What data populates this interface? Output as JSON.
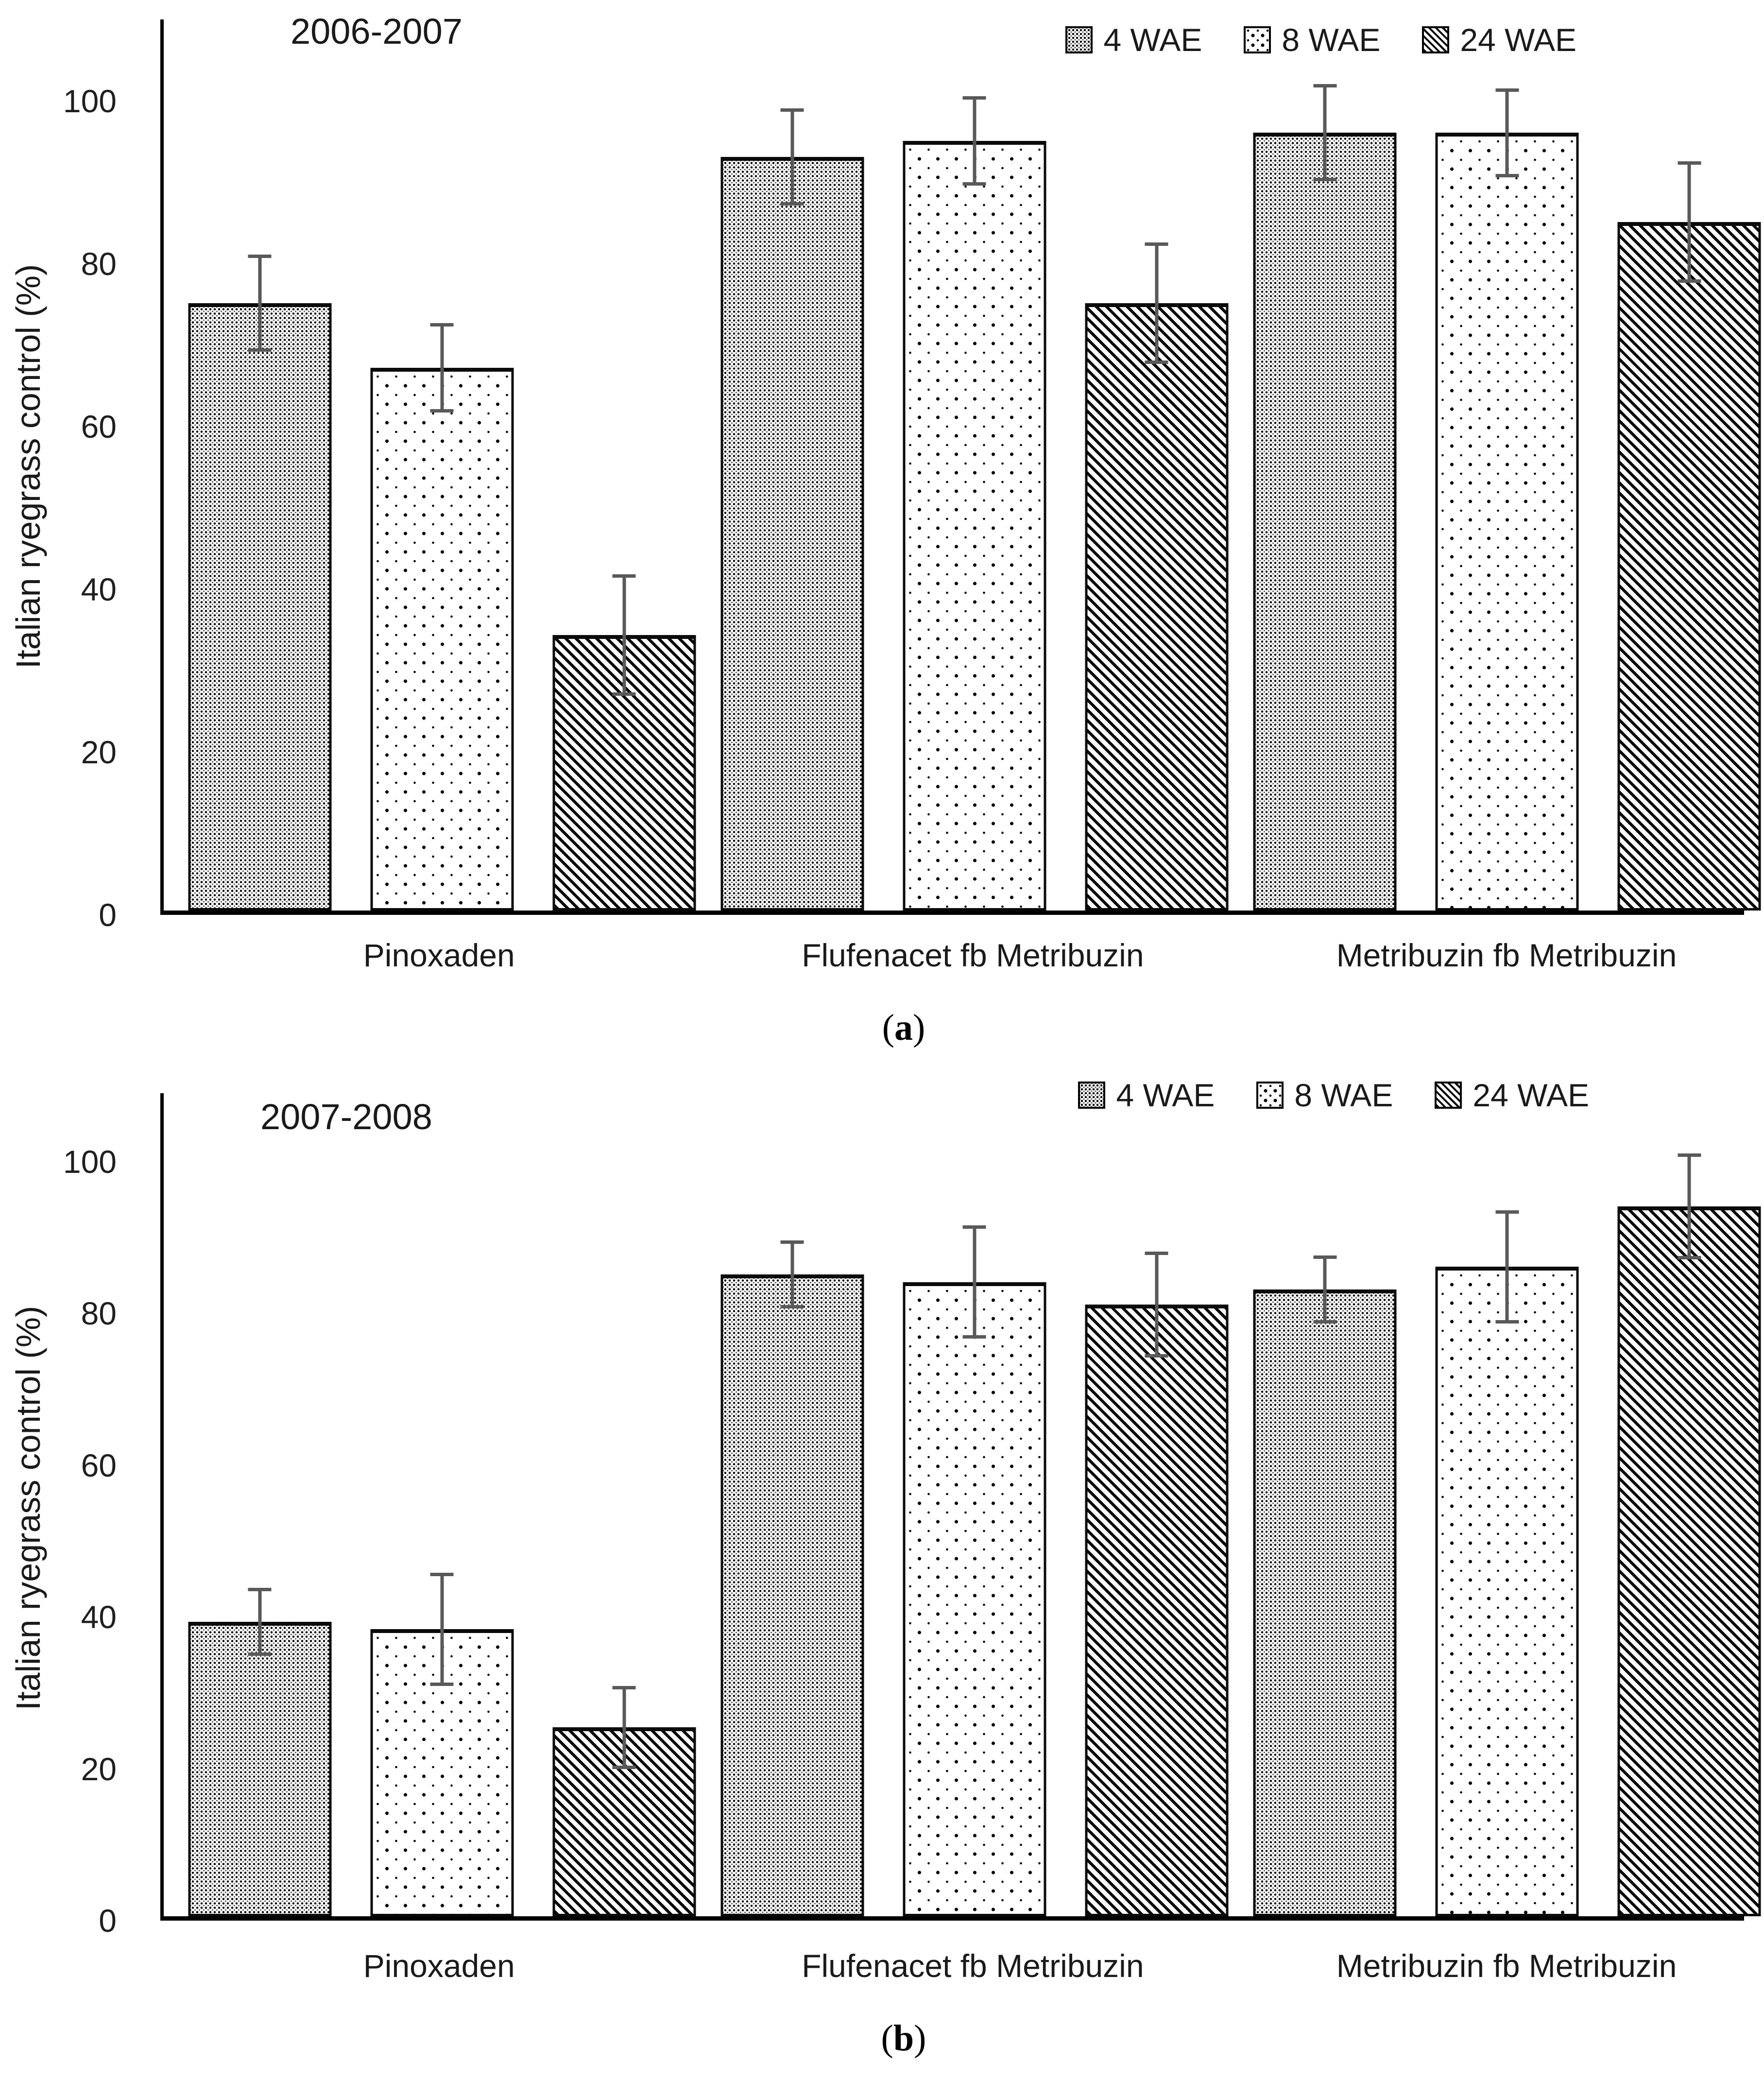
{
  "legend": {
    "items": [
      {
        "label": "4 WAE",
        "pattern": "dense-dot-grid"
      },
      {
        "label": "8 WAE",
        "pattern": "sparse-dots"
      },
      {
        "label": "24 WAE",
        "pattern": "diagonal-hatch"
      }
    ]
  },
  "colors": {
    "bar_outline": "#0a0a0a",
    "error_bar": "#595959",
    "text": "#1a1a1a",
    "background": "#ffffff"
  },
  "chart_data": [
    {
      "type": "bar",
      "title": "2006-2007",
      "caption_letter": "a",
      "ylabel": "Italian ryegrass control (%)",
      "xlabel": "",
      "categories": [
        "Pinoxaden",
        "Flufenacet fb Metribuzin",
        "Metribuzin fb Metribuzin"
      ],
      "series": [
        {
          "name": "4 WAE",
          "values": [
            75,
            93,
            96
          ],
          "errors": [
            6,
            6,
            6
          ]
        },
        {
          "name": "8 WAE",
          "values": [
            67,
            95,
            96
          ],
          "errors": [
            5.5,
            5.5,
            5.5
          ]
        },
        {
          "name": "24 WAE",
          "values": [
            34,
            75,
            85
          ],
          "errors": [
            7.5,
            7.5,
            7.5
          ]
        }
      ],
      "yticks": [
        0,
        20,
        40,
        60,
        80,
        100
      ],
      "ylim": [
        0,
        110
      ],
      "grid": false,
      "legend_position": "top-right",
      "error_bars": "plus-minus with caps"
    },
    {
      "type": "bar",
      "title": "2007-2008",
      "caption_letter": "b",
      "ylabel": "Italian ryegrass control (%)",
      "xlabel": "",
      "categories": [
        "Pinoxaden",
        "Flufenacet fb Metribuzin",
        "Metribuzin fb Metribuzin"
      ],
      "series": [
        {
          "name": "4 WAE",
          "values": [
            39,
            85,
            83
          ],
          "errors": [
            4.5,
            4.5,
            4.5
          ]
        },
        {
          "name": "8 WAE",
          "values": [
            38,
            84,
            86
          ],
          "errors": [
            7.5,
            7.5,
            7.5
          ]
        },
        {
          "name": "24 WAE",
          "values": [
            25,
            81,
            94
          ],
          "errors": [
            5.5,
            7,
            7
          ]
        }
      ],
      "yticks": [
        0,
        20,
        40,
        60,
        80,
        100
      ],
      "ylim": [
        0,
        109
      ],
      "grid": false,
      "legend_position": "top-right",
      "error_bars": "plus-minus with caps"
    }
  ]
}
